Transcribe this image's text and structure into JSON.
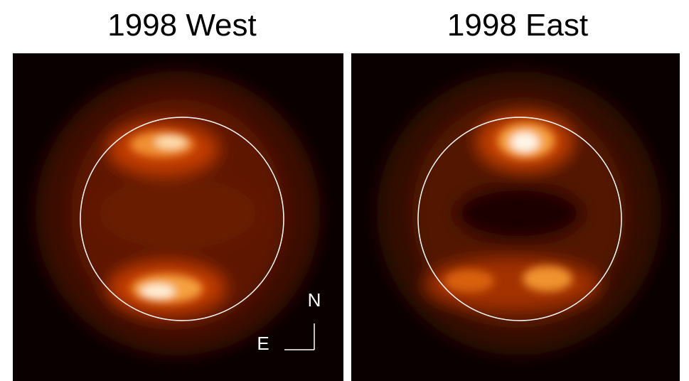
{
  "panels": [
    {
      "title": "1998 West"
    },
    {
      "title": "1998 East"
    }
  ],
  "compass": {
    "north": "N",
    "east": "E"
  }
}
